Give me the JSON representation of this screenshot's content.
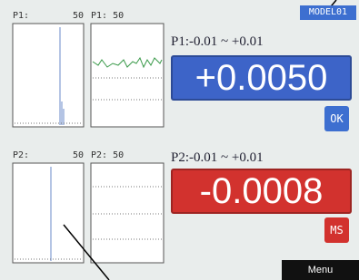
{
  "panel1": {
    "hist_label": "P1:",
    "hist_count": "50",
    "trend_label": "P1: 50",
    "range": "P1:-0.01 ~ +0.01",
    "value": "+0.0050",
    "button": "OK"
  },
  "panel2": {
    "hist_label": "P2:",
    "hist_count": "50",
    "trend_label": "P2: 50",
    "range": "P2:-0.01 ~ +0.01",
    "value": "-0.0008",
    "button": "MS"
  },
  "model": "MODEL01",
  "menu": "Menu"
}
